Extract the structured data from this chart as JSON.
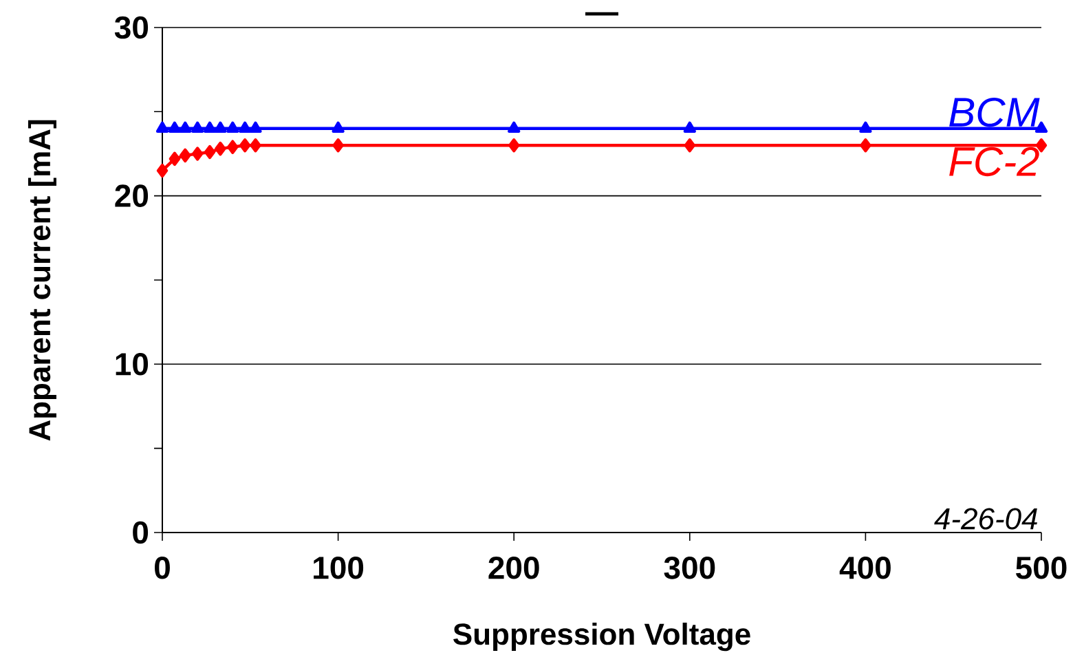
{
  "chart_data": {
    "type": "line",
    "title": "—",
    "xlabel": "Suppression Voltage",
    "ylabel": "Apparent current [mA]",
    "xlim": [
      0,
      500
    ],
    "xticks": [
      0,
      100,
      200,
      300,
      400,
      500
    ],
    "ylim": [
      0,
      30
    ],
    "yticks": [
      0,
      10,
      20,
      30
    ],
    "grid": "y",
    "legend": false,
    "annotations": [
      "4-26-04"
    ],
    "series": [
      {
        "name": "BCM",
        "color": "#0000ff",
        "marker": "triangle",
        "x": [
          0,
          7,
          13,
          20,
          27,
          33,
          40,
          47,
          53,
          100,
          200,
          300,
          400,
          500
        ],
        "values": [
          24,
          24,
          24,
          24,
          24,
          24,
          24,
          24,
          24,
          24,
          24,
          24,
          24,
          24
        ]
      },
      {
        "name": "FC-2",
        "color": "#ff0000",
        "marker": "diamond",
        "x": [
          0,
          7,
          13,
          20,
          27,
          33,
          40,
          47,
          53,
          100,
          200,
          300,
          400,
          500
        ],
        "values": [
          21.5,
          22.2,
          22.4,
          22.5,
          22.6,
          22.8,
          22.9,
          23.0,
          23.0,
          23.0,
          23.0,
          23.0,
          23.0,
          23.0
        ]
      }
    ]
  }
}
